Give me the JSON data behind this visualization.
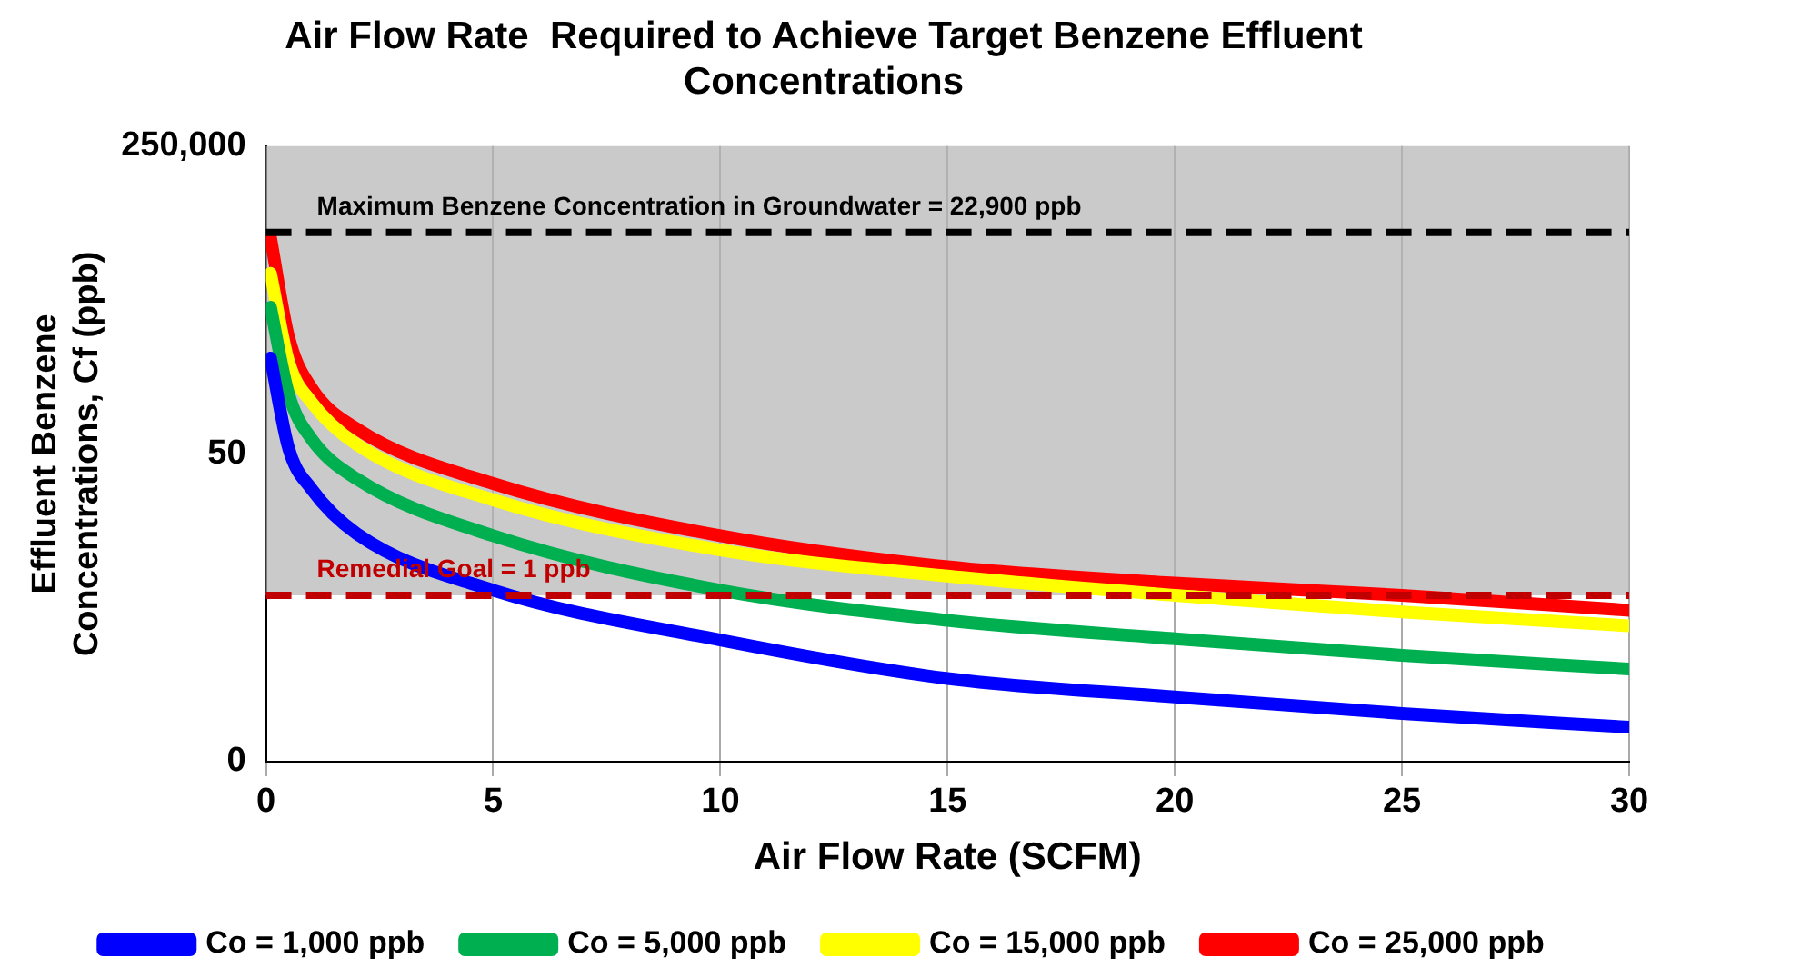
{
  "chart_data": {
    "type": "line",
    "title": "Air Flow Rate  Required to Achieve Target Benzene Effluent Concentrations",
    "xlabel": "Air Flow Rate (SCFM)",
    "ylabel": "Effluent Benzene Concentrations, Cf (ppb)",
    "x": [
      0.1,
      0.5,
      1,
      2,
      5,
      10,
      15,
      20,
      25,
      30
    ],
    "series": [
      {
        "name": "Co = 1,000 ppb",
        "color": "#0000ff",
        "values": [
          710,
          58,
          19,
          5.5,
          1.15,
          0.29,
          0.1,
          0.06,
          0.038,
          0.026
        ]
      },
      {
        "name": "Co = 5,000 ppb",
        "color": "#00b050",
        "values": [
          2900,
          260,
          76,
          25,
          5.2,
          1.15,
          0.5,
          0.3,
          0.19,
          0.13
        ]
      },
      {
        "name": "Co = 15,000 ppb",
        "color": "#ffff00",
        "values": [
          7400,
          640,
          210,
          65,
          14,
          3.5,
          1.7,
          1.0,
          0.63,
          0.43
        ]
      },
      {
        "name": "Co = 25,000 ppb",
        "color": "#ff0000",
        "values": [
          20000,
          1260,
          310,
          100,
          22,
          5.2,
          2.2,
          1.4,
          1.0,
          0.66
        ]
      }
    ],
    "log": "y",
    "xlim": [
      0,
      30
    ],
    "xticks": [
      0,
      5,
      10,
      15,
      20,
      25,
      30
    ],
    "ylim": [
      0.01,
      250000
    ],
    "yticks": [
      {
        "value": 0.01,
        "label": "0"
      },
      50,
      {
        "value": 250000,
        "label": "250,000"
      }
    ],
    "ref_lines": [
      {
        "axis": "y",
        "value": 22900,
        "label": "Maximum Benzene Concentration in Groundwater = 22,900 ppb",
        "color": "#000000",
        "line_style": "dashed"
      },
      {
        "axis": "y",
        "value": 1,
        "label": "Remedial Goal = 1 ppb",
        "color": "#c00000",
        "line_style": "dashed"
      }
    ],
    "bands": [
      {
        "axis": "y",
        "from": 1,
        "to": 250000,
        "color": "#b4b4b4"
      }
    ],
    "grid": "x",
    "legend": "bottom",
    "marker": "none",
    "line_style": "solid"
  }
}
